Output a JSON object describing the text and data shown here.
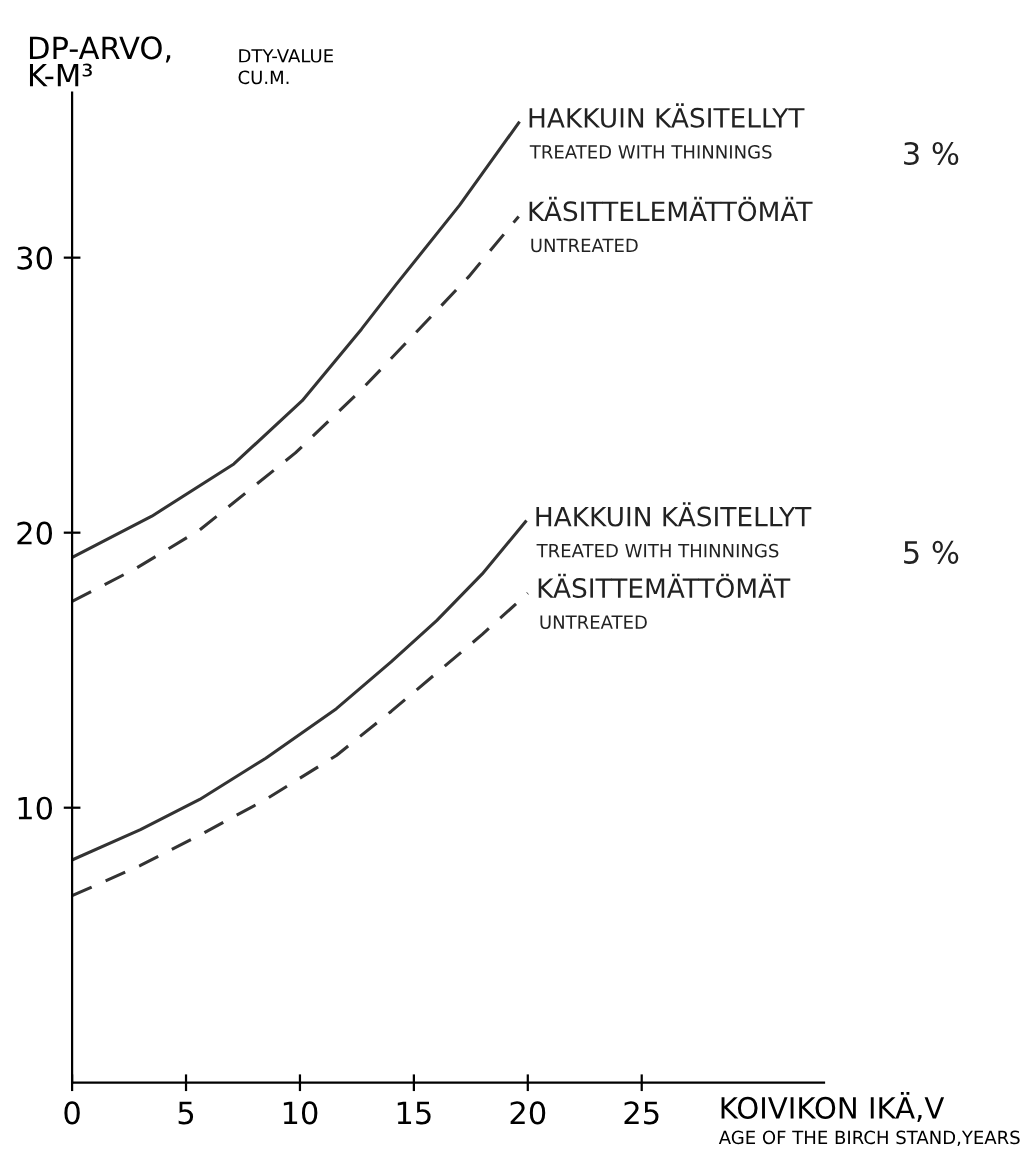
{
  "chart_data": {
    "type": "line",
    "ylabel": "DP-ARVO,\nK-M³",
    "xlabel": "KOIVIKON IKÄ,V",
    "annotations": [
      "DTY-VALUE\nCU.M.",
      "AGE OF THE BIRCH STAND,YEARS",
      "TREATED WITH THINNINGS",
      "UNTREATED",
      "3 %",
      "TREATED WITH THINNINGS",
      "UNTREATED",
      "5 %"
    ],
    "series": [
      {
        "name": "HAKKUIN KÄSITELLYT",
        "color": "#333333",
        "line_style": "solid",
        "x": [
          0,
          3.5,
          7.1,
          10.1,
          12.7,
          14.2,
          17,
          19.6
        ],
        "values": [
          19.1,
          20.6,
          22.5,
          24.8,
          27.4,
          29.0,
          31.9,
          34.9
        ]
      },
      {
        "name": "KÄSITTELEMÄTTÖMÄT",
        "color": "#333333",
        "line_style": "dashed",
        "x": [
          0,
          2.8,
          5.6,
          9.8,
          12.7,
          15,
          17.4,
          19.6
        ],
        "values": [
          17.5,
          18.7,
          20.1,
          22.9,
          25.2,
          27.2,
          29.3,
          31.5
        ]
      },
      {
        "name": "HAKKUIN KÄSITELLYT",
        "color": "#333333",
        "line_style": "solid",
        "x": [
          0,
          3,
          5.6,
          8.5,
          11.6,
          14,
          16,
          18,
          19.9
        ],
        "values": [
          8.1,
          9.2,
          10.3,
          11.8,
          13.6,
          15.3,
          16.8,
          18.5,
          20.4
        ]
      },
      {
        "name": "KÄSITTEMÄTTÖMÄT",
        "color": "#333333",
        "line_style": "dashed",
        "x": [
          0,
          3,
          5.6,
          8.5,
          11.6,
          14,
          16,
          18,
          20
        ],
        "values": [
          6.8,
          7.9,
          9.0,
          10.3,
          11.9,
          13.5,
          14.9,
          16.3,
          17.8
        ]
      }
    ],
    "xlim": [
      0,
      33
    ],
    "ylim": [
      0,
      36
    ],
    "xticks": [
      0,
      5,
      10,
      15,
      20,
      25
    ],
    "yticks": [
      10,
      20,
      30
    ],
    "grid": false,
    "legend": false
  }
}
